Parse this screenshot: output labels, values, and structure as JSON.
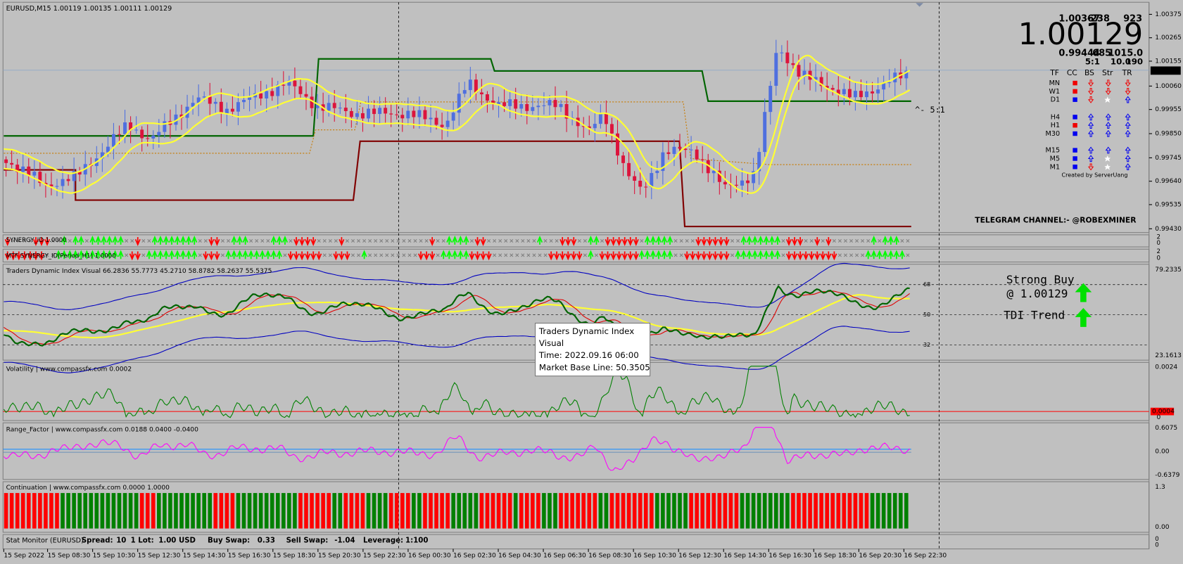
{
  "header": {
    "symbol_info": "EURUSD,M15  1.00119 1.00135 1.00111 1.00129"
  },
  "price_axis": [
    "1.00375",
    "1.00265",
    "1.00155",
    "1.00060",
    "0.99955",
    "0.99850",
    "0.99745",
    "0.99640",
    "0.99535",
    "0.99430"
  ],
  "current_price": "1.00129",
  "info_panel": {
    "high": "1.00367",
    "diff": "-238",
    "count": "923",
    "price": "1.00129",
    "low": "0.99444",
    "range": "685",
    "value": "1015.0",
    "ratio": "5:1",
    "lot": "10.0",
    "spread": "190",
    "columns": [
      "TF",
      "CC",
      "BS",
      "Str",
      "TR"
    ],
    "timeframes": [
      "MN",
      "W1",
      "D1",
      "H4",
      "H1",
      "M30",
      "M15",
      "M5",
      "M1"
    ],
    "credit": "Created by ServerUang"
  },
  "ratio_marker": "^- 5:1",
  "telegram": "TELEGRAM CHANNEL:- @ROBEXMINER",
  "synergy": {
    "title": "SYNERGY_ID 1.0000",
    "scale": [
      "2",
      "0"
    ]
  },
  "mtf_synergy": {
    "title": "MTF SYNERGY_ID(Period_H1) 1.0000",
    "scale": [
      "2",
      "0"
    ]
  },
  "tdi": {
    "title": "Traders Dynamic Index Visual 66.2836 55.7773 45.2710 58.8782 58.2637 55.5375",
    "scale": [
      "79.2335",
      "23.1613"
    ],
    "levels": [
      "68",
      "50",
      "32"
    ],
    "signals": [
      "Strong Buy",
      "@ 1.00129",
      "TDI Trend"
    ]
  },
  "tooltip": [
    "Traders Dynamic Index",
    "Visual",
    "Time: 2022.09.16 06:00",
    "Market Base Line: 50.3505"
  ],
  "volatility": {
    "title": "Volatility | www.compassfx.com  0.0002",
    "scale": [
      "0.0024",
      "0.0004",
      "0"
    ]
  },
  "range_factor": {
    "title": "Range_Factor | www.compassfx.com  0.0188 0.0400 -0.0400",
    "scale": [
      "0.6075",
      "0.00",
      "-0.6379"
    ]
  },
  "continuation": {
    "title": "Continuation | www.compassfx.com  0.0000 1.0000",
    "scale": [
      "1.3",
      "0.00"
    ]
  },
  "stat_monitor": {
    "title": "Stat Monitor (EURUSD)",
    "items": [
      "Spread:",
      "10",
      "1 Lot:",
      "1.00 USD",
      "Buy Swap:",
      "0.33",
      "Sell Swap:",
      "-1.04",
      "Leverage:",
      "1:100"
    ],
    "scale": [
      "0",
      "0"
    ]
  },
  "time_axis": [
    "15 Sep 2022",
    "15 Sep 08:30",
    "15 Sep 10:30",
    "15 Sep 12:30",
    "15 Sep 14:30",
    "15 Sep 16:30",
    "15 Sep 18:30",
    "15 Sep 20:30",
    "15 Sep 22:30",
    "16 Sep 00:30",
    "16 Sep 02:30",
    "16 Sep 04:30",
    "16 Sep 06:30",
    "16 Sep 08:30",
    "16 Sep 10:30",
    "16 Sep 12:30",
    "16 Sep 14:30",
    "16 Sep 16:30",
    "16 Sep 18:30",
    "16 Sep 20:30",
    "16 Sep 22:30"
  ]
}
